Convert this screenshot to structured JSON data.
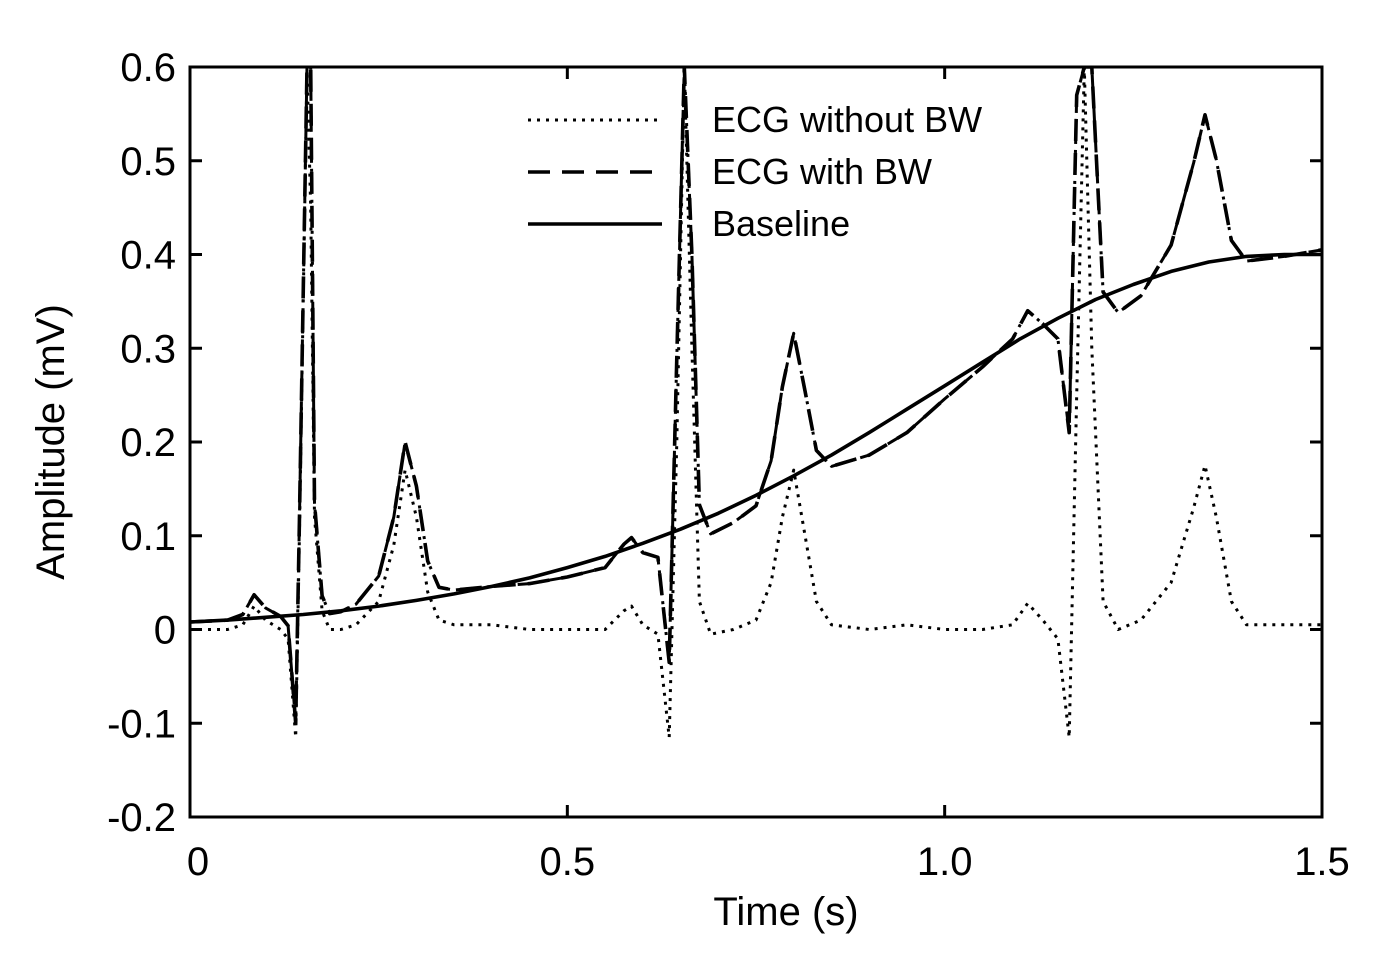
{
  "chart_data": {
    "type": "line",
    "xlabel": "Time (s)",
    "ylabel": "Amplitude (mV)",
    "xlim": [
      0,
      1.5
    ],
    "ylim": [
      -0.2,
      0.6
    ],
    "xticks": [
      0,
      0.5,
      1.0,
      1.5
    ],
    "xtick_labels": [
      "0",
      "0.5",
      "1.0",
      "1.5"
    ],
    "yticks": [
      -0.2,
      -0.1,
      0,
      0.1,
      0.2,
      0.3,
      0.4,
      0.5,
      0.6
    ],
    "ytick_labels": [
      "-0.2",
      "-0.1",
      "0",
      "0.1",
      "0.2",
      "0.3",
      "0.4",
      "0.5",
      "0.6"
    ],
    "grid": false,
    "legend": "top-right",
    "series": [
      {
        "name": "ECG without BW",
        "style": "dotted",
        "x": [
          0,
          0.05,
          0.07,
          0.085,
          0.1,
          0.12,
          0.13,
          0.14,
          0.145,
          0.155,
          0.16,
          0.165,
          0.175,
          0.185,
          0.2,
          0.22,
          0.25,
          0.27,
          0.285,
          0.3,
          0.315,
          0.33,
          0.35,
          0.4,
          0.45,
          0.5,
          0.55,
          0.575,
          0.585,
          0.6,
          0.62,
          0.635,
          0.645,
          0.655,
          0.665,
          0.675,
          0.69,
          0.72,
          0.75,
          0.77,
          0.785,
          0.8,
          0.815,
          0.83,
          0.85,
          0.9,
          0.95,
          1.0,
          1.05,
          1.09,
          1.11,
          1.13,
          1.15,
          1.165,
          1.175,
          1.185,
          1.195,
          1.21,
          1.23,
          1.26,
          1.3,
          1.33,
          1.345,
          1.36,
          1.38,
          1.4,
          1.45,
          1.5
        ],
        "y": [
          0,
          0,
          0.005,
          0.025,
          0.01,
          0,
          -0.01,
          -0.115,
          0.1,
          0.6,
          0.45,
          0.12,
          0.02,
          0,
          0,
          0.005,
          0.03,
          0.09,
          0.17,
          0.12,
          0.04,
          0.01,
          0.005,
          0.005,
          0,
          0,
          0,
          0.02,
          0.025,
          0.005,
          -0.005,
          -0.115,
          0.2,
          0.6,
          0.3,
          0.03,
          -0.005,
          0,
          0.01,
          0.05,
          0.12,
          0.17,
          0.1,
          0.03,
          0.005,
          0,
          0.005,
          0,
          0,
          0.005,
          0.028,
          0.01,
          -0.01,
          -0.115,
          0.25,
          0.6,
          0.3,
          0.03,
          0,
          0.01,
          0.05,
          0.13,
          0.175,
          0.12,
          0.03,
          0.005,
          0.005,
          0.005
        ]
      },
      {
        "name": "ECG with BW",
        "style": "dashed",
        "x": [
          0,
          0.05,
          0.07,
          0.085,
          0.1,
          0.12,
          0.13,
          0.14,
          0.145,
          0.155,
          0.16,
          0.165,
          0.175,
          0.185,
          0.2,
          0.22,
          0.25,
          0.27,
          0.285,
          0.3,
          0.315,
          0.33,
          0.35,
          0.4,
          0.45,
          0.5,
          0.55,
          0.575,
          0.585,
          0.6,
          0.62,
          0.635,
          0.645,
          0.655,
          0.665,
          0.675,
          0.69,
          0.72,
          0.75,
          0.77,
          0.785,
          0.8,
          0.815,
          0.83,
          0.85,
          0.9,
          0.95,
          1.0,
          1.05,
          1.09,
          1.11,
          1.13,
          1.15,
          1.165,
          1.175,
          1.185,
          1.195,
          1.21,
          1.23,
          1.26,
          1.3,
          1.33,
          1.345,
          1.36,
          1.38,
          1.4,
          1.45,
          1.5
        ],
        "y": [
          0.008,
          0.01,
          0.016,
          0.037,
          0.023,
          0.014,
          0.004,
          -0.1,
          0.115,
          0.6,
          0.6,
          0.135,
          0.036,
          0.017,
          0.019,
          0.027,
          0.057,
          0.12,
          0.2,
          0.153,
          0.073,
          0.045,
          0.042,
          0.046,
          0.049,
          0.056,
          0.066,
          0.091,
          0.098,
          0.082,
          0.077,
          -0.035,
          0.29,
          0.6,
          0.4,
          0.133,
          0.102,
          0.114,
          0.132,
          0.18,
          0.259,
          0.316,
          0.254,
          0.191,
          0.174,
          0.186,
          0.21,
          0.246,
          0.28,
          0.31,
          0.34,
          0.326,
          0.31,
          0.21,
          0.57,
          0.6,
          0.6,
          0.36,
          0.338,
          0.356,
          0.41,
          0.498,
          0.549,
          0.501,
          0.415,
          0.393,
          0.398,
          0.405
        ]
      },
      {
        "name": "Baseline",
        "style": "solid",
        "x": [
          0,
          0.05,
          0.1,
          0.15,
          0.2,
          0.25,
          0.3,
          0.35,
          0.4,
          0.45,
          0.5,
          0.55,
          0.6,
          0.65,
          0.7,
          0.75,
          0.8,
          0.85,
          0.9,
          0.95,
          1.0,
          1.05,
          1.1,
          1.15,
          1.2,
          1.25,
          1.3,
          1.35,
          1.4,
          1.45,
          1.5
        ],
        "y": [
          0.008,
          0.01,
          0.013,
          0.016,
          0.02,
          0.025,
          0.031,
          0.038,
          0.046,
          0.055,
          0.066,
          0.078,
          0.092,
          0.107,
          0.124,
          0.143,
          0.164,
          0.186,
          0.21,
          0.235,
          0.26,
          0.285,
          0.31,
          0.332,
          0.352,
          0.368,
          0.382,
          0.392,
          0.398,
          0.4,
          0.4
        ]
      },
      {
        "name": "",
        "style": "dashdot",
        "x": [
          0,
          0.05,
          0.07,
          0.085,
          0.1,
          0.12,
          0.13,
          0.14,
          0.145,
          0.155,
          0.16,
          0.165,
          0.175,
          0.185,
          0.2,
          0.22,
          0.25,
          0.27,
          0.285,
          0.3,
          0.315,
          0.33,
          0.35,
          0.4,
          0.45,
          0.5,
          0.55,
          0.575,
          0.585,
          0.6,
          0.62,
          0.635,
          0.645,
          0.655,
          0.665,
          0.675,
          0.69,
          0.72,
          0.75,
          0.77,
          0.785,
          0.8,
          0.815,
          0.83,
          0.85,
          0.9,
          0.95,
          1.0,
          1.05,
          1.09,
          1.11,
          1.13,
          1.15,
          1.165,
          1.175,
          1.185,
          1.195,
          1.21,
          1.23,
          1.26,
          1.3,
          1.33,
          1.345,
          1.36,
          1.38,
          1.4,
          1.45,
          1.5
        ],
        "y": [
          0.008,
          0.01,
          0.016,
          0.037,
          0.023,
          0.014,
          0.004,
          -0.1,
          0.115,
          0.6,
          0.6,
          0.135,
          0.036,
          0.017,
          0.019,
          0.027,
          0.057,
          0.12,
          0.2,
          0.153,
          0.073,
          0.045,
          0.042,
          0.046,
          0.049,
          0.056,
          0.066,
          0.091,
          0.098,
          0.082,
          0.077,
          -0.035,
          0.29,
          0.6,
          0.4,
          0.133,
          0.102,
          0.114,
          0.132,
          0.18,
          0.259,
          0.316,
          0.254,
          0.191,
          0.174,
          0.186,
          0.21,
          0.246,
          0.28,
          0.31,
          0.34,
          0.326,
          0.31,
          0.21,
          0.57,
          0.6,
          0.6,
          0.36,
          0.338,
          0.356,
          0.41,
          0.498,
          0.549,
          0.501,
          0.415,
          0.393,
          0.398,
          0.405
        ]
      }
    ]
  }
}
